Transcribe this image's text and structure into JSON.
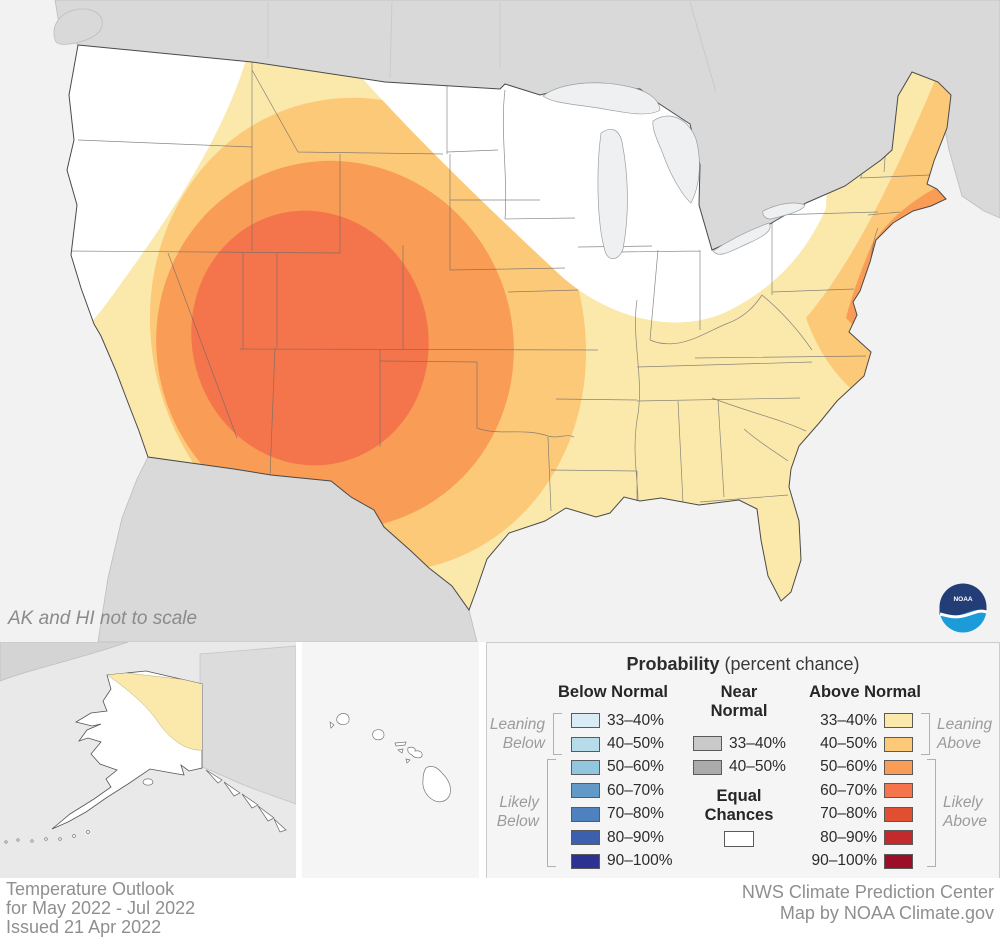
{
  "note": {
    "ak_hi": "AK and HI not to scale"
  },
  "logo": {
    "name": "NOAA",
    "text": "NOAA"
  },
  "footer": {
    "left_line1": "Temperature Outlook",
    "left_line2": "for May 2022 - Jul 2022",
    "left_line3": "Issued 21 Apr 2022",
    "right_line1": "NWS Climate Prediction Center",
    "right_line2": "Map by NOAA Climate.gov"
  },
  "legend": {
    "title_bold": "Probability",
    "title_rest": " (percent chance)",
    "below": {
      "header": "Below Normal",
      "bracket_small": {
        "line1": "Leaning",
        "line2": "Below"
      },
      "bracket_large": {
        "line1": "Likely",
        "line2": "Below"
      },
      "rows": [
        {
          "label": "33–40%",
          "color": "#d9ecf5"
        },
        {
          "label": "40–50%",
          "color": "#b6dcea"
        },
        {
          "label": "50–60%",
          "color": "#92c5de"
        },
        {
          "label": "60–70%",
          "color": "#6399c7"
        },
        {
          "label": "70–80%",
          "color": "#4e81bd"
        },
        {
          "label": "80–90%",
          "color": "#3c60ad"
        },
        {
          "label": "90–100%",
          "color": "#2d3191"
        }
      ]
    },
    "near": {
      "header_line1": "Near",
      "header_line2": "Normal",
      "rows": [
        {
          "label": "33–40%",
          "color": "#c9c9c9"
        },
        {
          "label": "40–50%",
          "color": "#ababab"
        }
      ],
      "equal_line1": "Equal",
      "equal_line2": "Chances",
      "equal_color": "#ffffff"
    },
    "above": {
      "header": "Above Normal",
      "bracket_small": {
        "line1": "Leaning",
        "line2": "Above"
      },
      "bracket_large": {
        "line1": "Likely",
        "line2": "Above"
      },
      "rows": [
        {
          "label": "33–40%",
          "color": "#fbe8ab"
        },
        {
          "label": "40–50%",
          "color": "#fcc979"
        },
        {
          "label": "50–60%",
          "color": "#f99c55"
        },
        {
          "label": "60–70%",
          "color": "#f4744b"
        },
        {
          "label": "70–80%",
          "color": "#e14f31"
        },
        {
          "label": "80–90%",
          "color": "#c22a2c"
        },
        {
          "label": "90–100%",
          "color": "#9c0e27"
        }
      ]
    }
  },
  "map_colors": {
    "ocean": "#f2f2f2",
    "neighbor_land": "#d9d9d9",
    "us_base": "#ffffff",
    "equal_chances": "#ffffff",
    "band_33_40": "#fbe8ab",
    "band_40_50": "#fcc979",
    "band_50_60": "#f99c55",
    "band_60_70": "#f4744b",
    "lake": "#eef0f1",
    "border": "#4a4a4a"
  },
  "chart_data": {
    "type": "choropleth-map",
    "title": "Temperature Outlook for May 2022 - Jul 2022",
    "issued": "Issued 21 Apr 2022",
    "regions": [
      {
        "area": "Four Corners: Utah, Colorado, Arizona, New Mexico, west Texas panhandle",
        "category": "Above Normal 60–70%"
      },
      {
        "area": "Great Basin, southern Rockies, southern Plains, central Texas",
        "category": "Above Normal 50–60%"
      },
      {
        "area": "Interior West, Montana, Nebraska, Oklahoma, south Texas, New England coast, NJ–Delmarva coast",
        "category": "Above Normal 40–50%"
      },
      {
        "area": "Pacific fringe, northern Plains margin, Gulf Coast, Southeast, mid-Atlantic, northern Alaska strip",
        "category": "Above Normal 33–40%"
      },
      {
        "area": "Pacific Northwest coast, upper Midwest / Great Lakes / Ohio Valley, most of Alaska, Hawaii",
        "category": "Equal Chances"
      }
    ]
  }
}
